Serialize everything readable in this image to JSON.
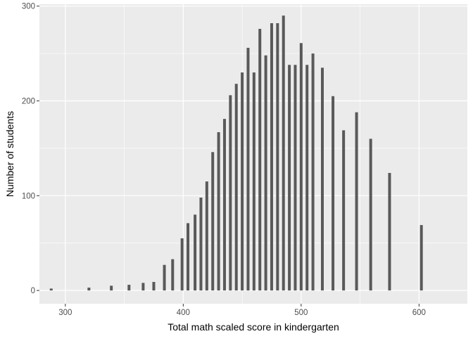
{
  "chart_data": {
    "type": "bar",
    "title": "",
    "xlabel": "Total math scaled score in kindergarten",
    "ylabel": "Number of students",
    "xlim": [
      278,
      641
    ],
    "ylim": [
      -14,
      302
    ],
    "x_ticks": [
      300,
      400,
      500,
      600
    ],
    "y_ticks": [
      0,
      100,
      200,
      300
    ],
    "x_tick_labels": [
      "300",
      "400",
      "500",
      "600"
    ],
    "y_tick_labels": [
      "0",
      "100",
      "200",
      "300"
    ],
    "grid": true,
    "legend": "none",
    "colors": {
      "panel": "#ebebeb",
      "grid_major": "#ffffff",
      "bar": "#595959",
      "tick_label": "#4d4d4d",
      "axis_title": "#000000"
    },
    "x": [
      288,
      320,
      339,
      354,
      366,
      375,
      384,
      391,
      399,
      404,
      410,
      415,
      420,
      425,
      430,
      435,
      440,
      445,
      450,
      455,
      460,
      465,
      470,
      475,
      480,
      485,
      490,
      495,
      500,
      505,
      510,
      518,
      527,
      536,
      547,
      559,
      575,
      602,
      626
    ],
    "values": [
      2,
      3,
      5,
      6,
      8,
      9,
      27,
      33,
      55,
      71,
      80,
      98,
      115,
      146,
      167,
      181,
      206,
      218,
      230,
      256,
      230,
      276,
      248,
      282,
      282,
      290,
      238,
      238,
      261,
      238,
      250,
      235,
      205,
      169,
      188,
      160,
      124,
      69,
      0
    ]
  }
}
